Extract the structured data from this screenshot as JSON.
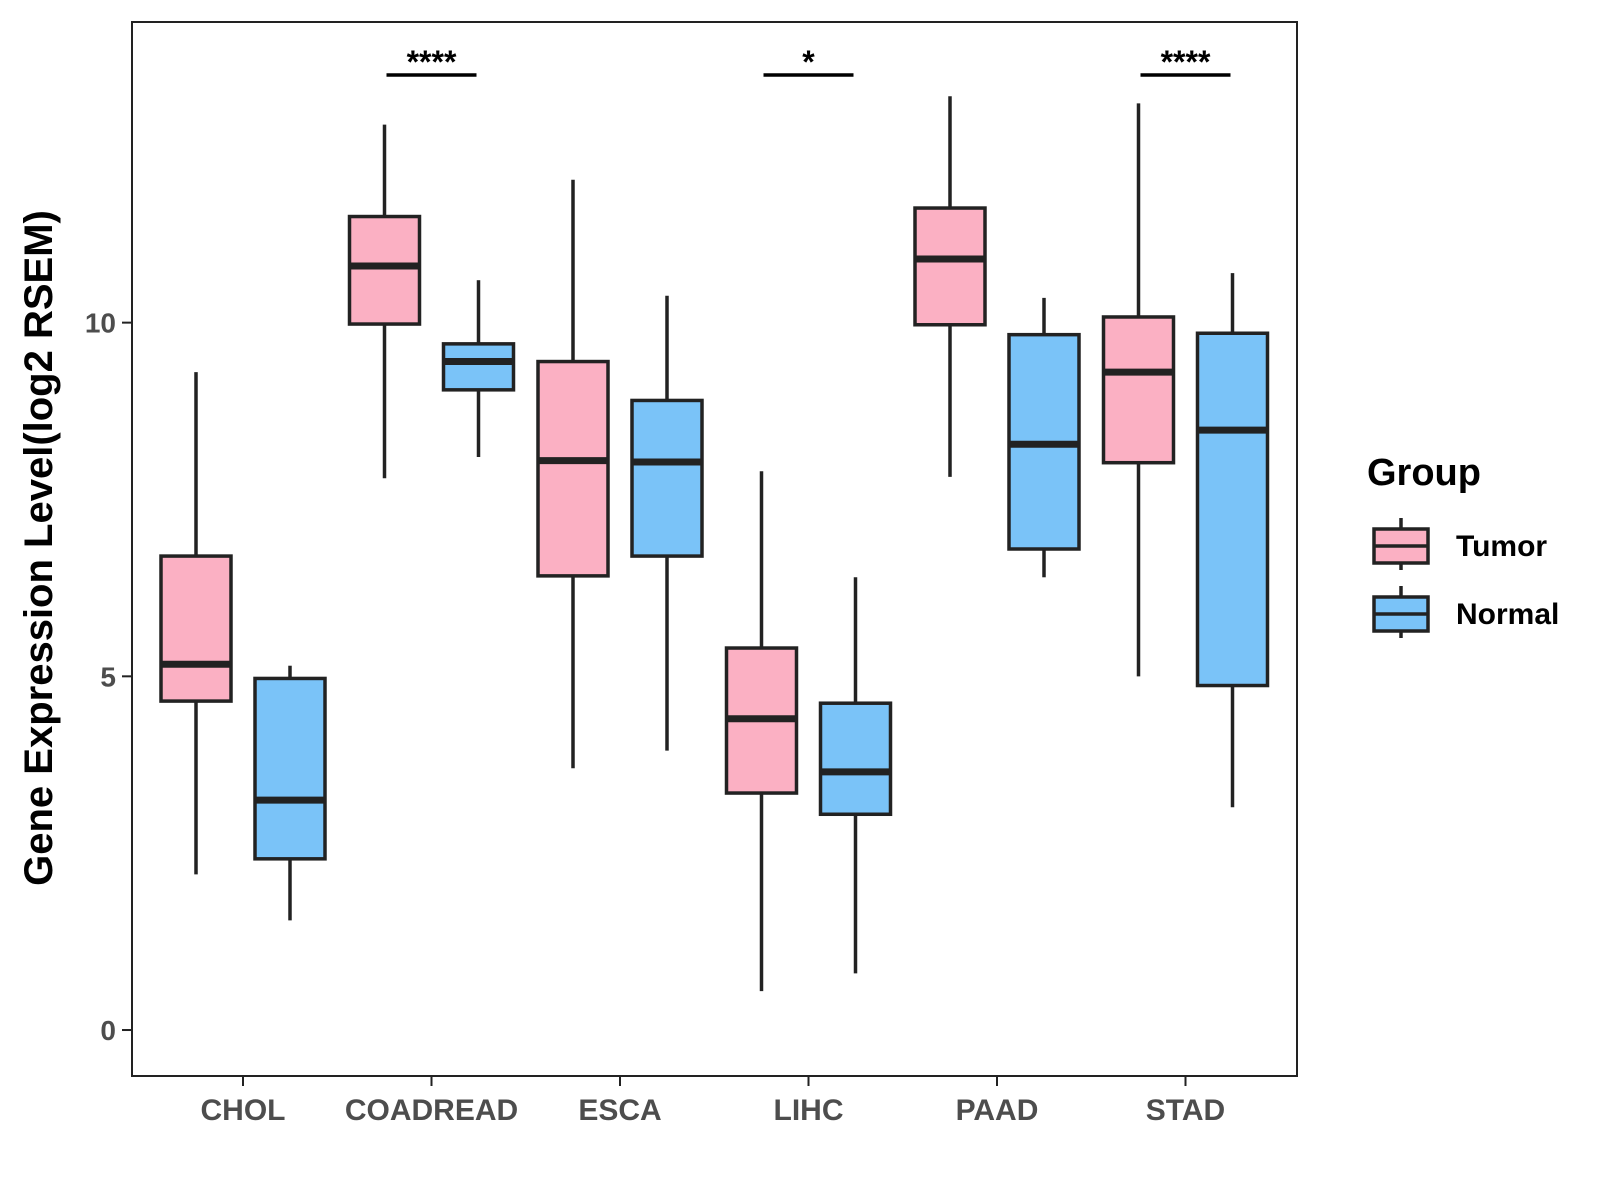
{
  "chart_data": {
    "type": "boxplot",
    "title": "",
    "xlabel": "",
    "ylabel": "Gene Expression Level(log2 RSEM)",
    "ylim": [
      -0.65,
      14.25
    ],
    "yticks": [
      0,
      5,
      10
    ],
    "categories": [
      "CHOL",
      "COADREAD",
      "ESCA",
      "LIHC",
      "PAAD",
      "STAD"
    ],
    "legend": {
      "title": "Group",
      "position": "right",
      "entries": [
        "Tumor",
        "Normal"
      ]
    },
    "series": [
      {
        "name": "Tumor",
        "color": "#FBB0C3",
        "boxes": [
          {
            "category": "CHOL",
            "min": 2.2,
            "q1": 4.65,
            "median": 5.17,
            "q3": 6.7,
            "max": 9.3
          },
          {
            "category": "COADREAD",
            "min": 7.8,
            "q1": 9.98,
            "median": 10.8,
            "q3": 11.5,
            "max": 12.8
          },
          {
            "category": "ESCA",
            "min": 3.7,
            "q1": 6.42,
            "median": 8.05,
            "q3": 9.45,
            "max": 12.02
          },
          {
            "category": "LIHC",
            "min": 0.55,
            "q1": 3.35,
            "median": 4.4,
            "q3": 5.4,
            "max": 7.9
          },
          {
            "category": "PAAD",
            "min": 7.82,
            "q1": 9.97,
            "median": 10.9,
            "q3": 11.62,
            "max": 13.2
          },
          {
            "category": "STAD",
            "min": 5.0,
            "q1": 8.02,
            "median": 9.3,
            "q3": 10.08,
            "max": 13.1
          }
        ]
      },
      {
        "name": "Normal",
        "color": "#7AC3F8",
        "boxes": [
          {
            "category": "CHOL",
            "min": 1.55,
            "q1": 2.42,
            "median": 3.25,
            "q3": 4.97,
            "max": 5.15
          },
          {
            "category": "COADREAD",
            "min": 8.1,
            "q1": 9.05,
            "median": 9.45,
            "q3": 9.7,
            "max": 10.6
          },
          {
            "category": "ESCA",
            "min": 3.95,
            "q1": 6.7,
            "median": 8.03,
            "q3": 8.9,
            "max": 10.38
          },
          {
            "category": "LIHC",
            "min": 0.8,
            "q1": 3.05,
            "median": 3.65,
            "q3": 4.62,
            "max": 6.4
          },
          {
            "category": "PAAD",
            "min": 6.4,
            "q1": 6.8,
            "median": 8.28,
            "q3": 9.83,
            "max": 10.35
          },
          {
            "category": "STAD",
            "min": 3.15,
            "q1": 4.87,
            "median": 8.48,
            "q3": 9.85,
            "max": 10.7
          }
        ]
      }
    ],
    "annotations": [
      {
        "category": "COADREAD",
        "label": "****",
        "y": 13.5
      },
      {
        "category": "LIHC",
        "label": "*",
        "y": 13.5
      },
      {
        "category": "STAD",
        "label": "****",
        "y": 13.5
      }
    ]
  }
}
